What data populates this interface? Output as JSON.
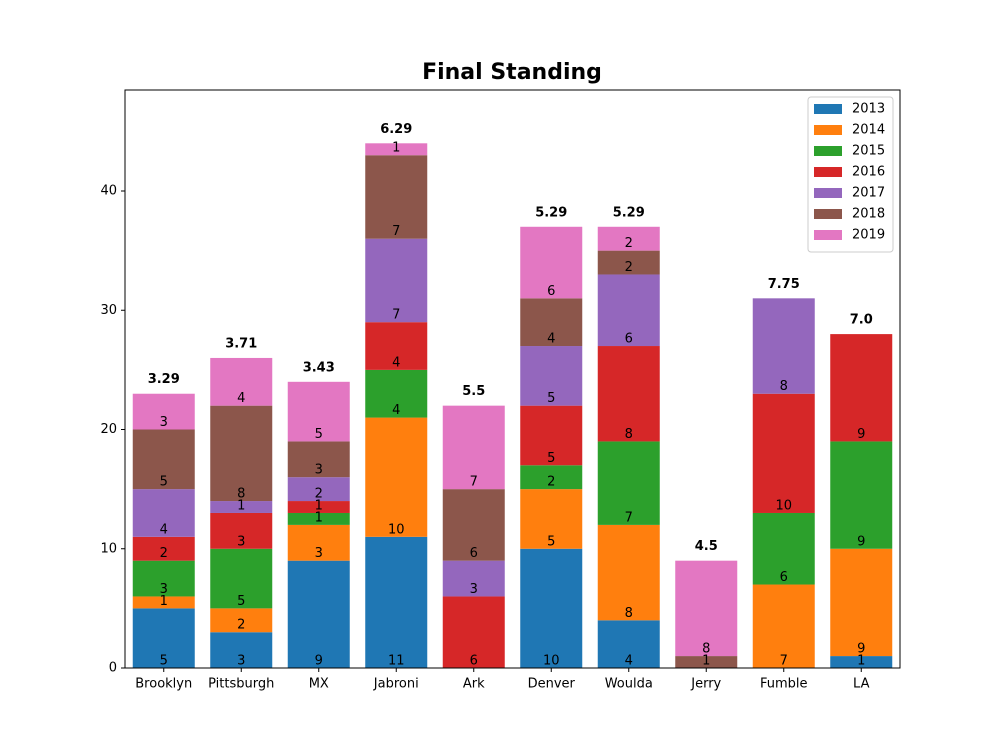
{
  "chart_data": {
    "type": "stacked_bar",
    "title": "Final Standing",
    "categories": [
      "Brooklyn",
      "Pittsburgh",
      "MX",
      "Jabroni",
      "Ark",
      "Denver",
      "Woulda",
      "Jerry",
      "Fumble",
      "LA"
    ],
    "series": [
      {
        "name": "2013",
        "color": "#1f77b4",
        "values": [
          5,
          3,
          9,
          11,
          0,
          10,
          4,
          0,
          0,
          1
        ]
      },
      {
        "name": "2014",
        "color": "#ff7f0e",
        "values": [
          1,
          2,
          3,
          10,
          0,
          5,
          8,
          0,
          7,
          9
        ]
      },
      {
        "name": "2015",
        "color": "#2ca02c",
        "values": [
          3,
          5,
          1,
          4,
          0,
          2,
          7,
          0,
          6,
          9
        ]
      },
      {
        "name": "2016",
        "color": "#d62728",
        "values": [
          2,
          3,
          1,
          4,
          6,
          5,
          8,
          0,
          10,
          9
        ]
      },
      {
        "name": "2017",
        "color": "#9467bd",
        "values": [
          4,
          1,
          2,
          7,
          3,
          5,
          6,
          0,
          8,
          0
        ]
      },
      {
        "name": "2018",
        "color": "#8c564b",
        "values": [
          5,
          8,
          3,
          7,
          6,
          4,
          2,
          1,
          0,
          0
        ]
      },
      {
        "name": "2019",
        "color": "#e377c2",
        "values": [
          3,
          4,
          5,
          1,
          7,
          6,
          2,
          8,
          0,
          0
        ]
      }
    ],
    "averages": {
      "values": [
        3.29,
        3.71,
        3.43,
        6.29,
        5.5,
        5.29,
        5.29,
        4.5,
        7.75,
        7.0
      ],
      "value_labels": [
        "3.29",
        "3.71",
        "3.43",
        "6.29",
        "5.5",
        "5.29",
        "5.29",
        "4.5",
        "7.75",
        "7.0"
      ]
    },
    "ylim": [
      0,
      48.47
    ],
    "yticks": [
      0,
      10,
      20,
      30,
      40
    ],
    "legend": "upper right"
  }
}
